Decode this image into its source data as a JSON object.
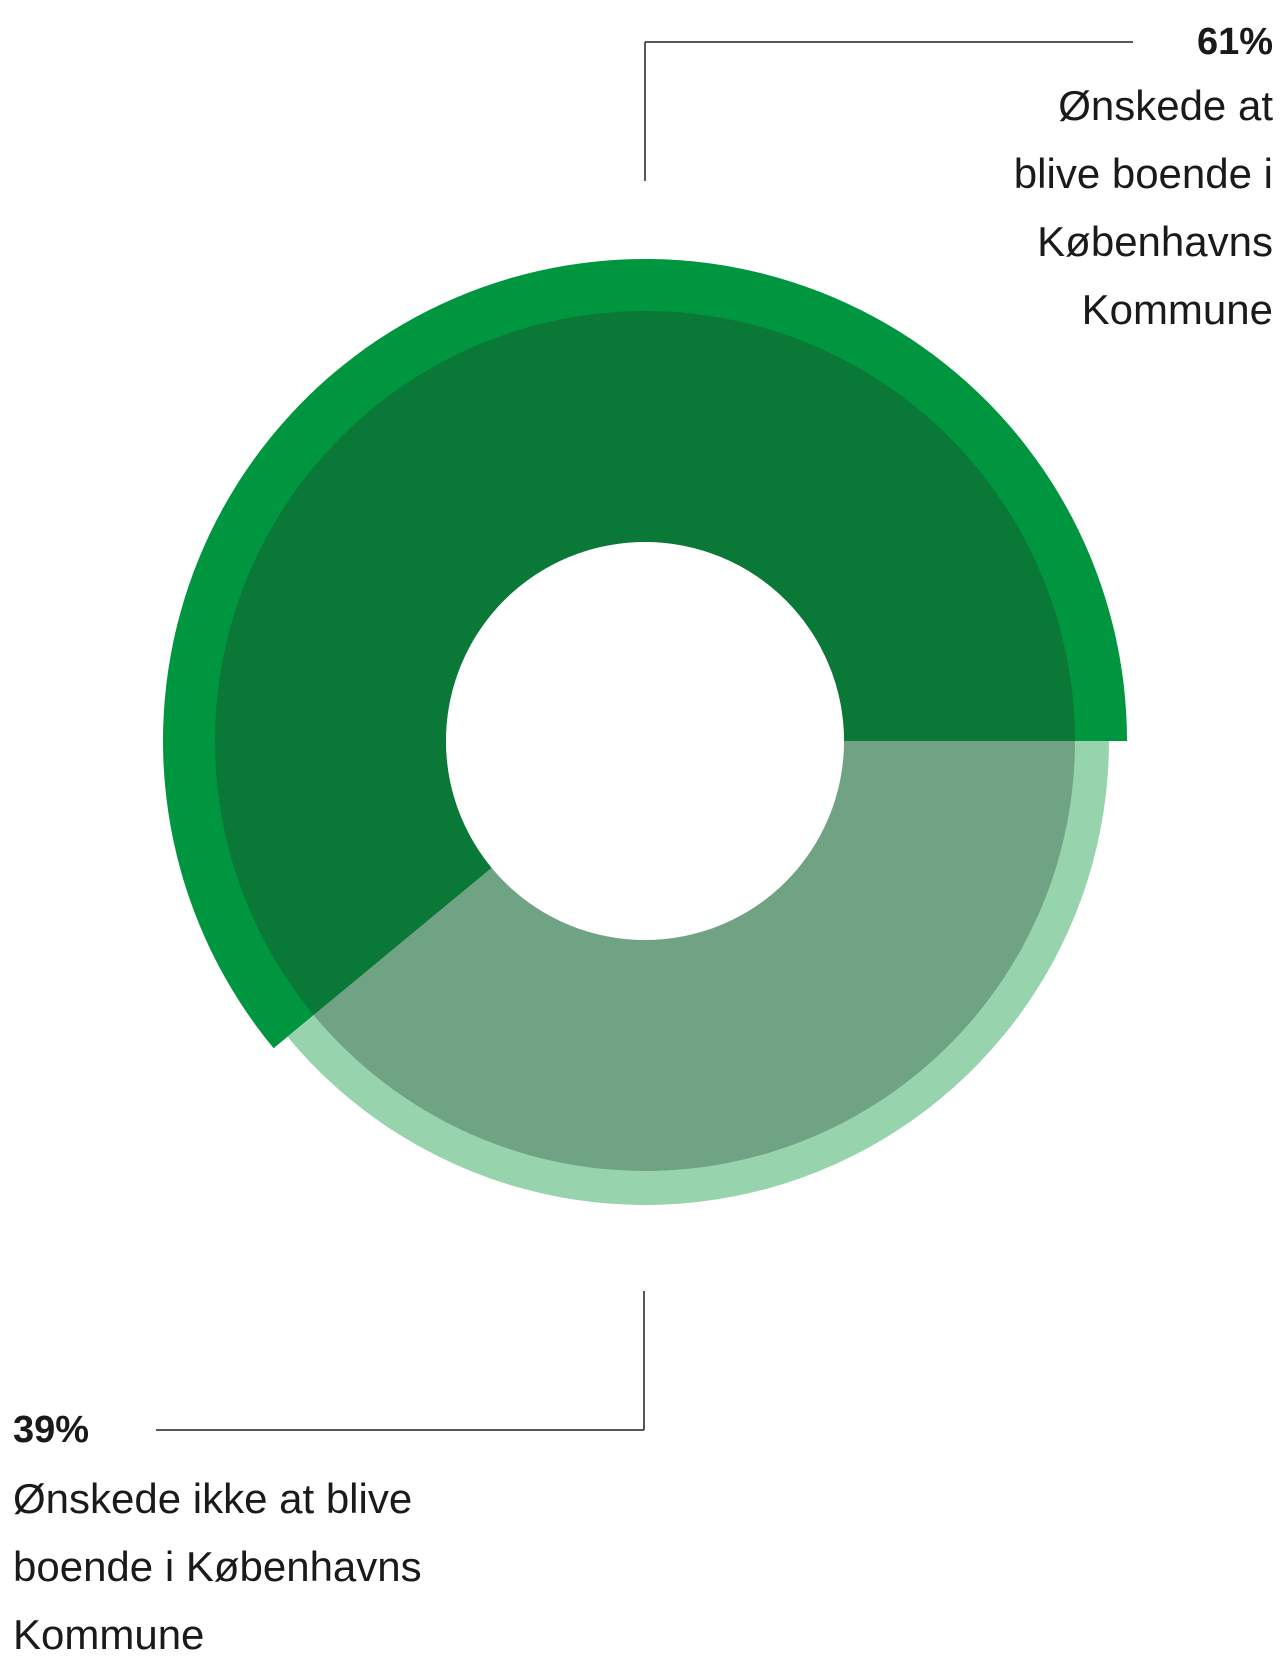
{
  "chart_data": {
    "type": "donut",
    "categories": [
      "Ønskede at blive boende i Københavns Kommune",
      "Ønskede ikke at blive boende i Københavns Kommune"
    ],
    "values": [
      61,
      39
    ],
    "value_labels": [
      "61%",
      "39%"
    ],
    "colors": [
      "#00963f",
      "#97d4ae"
    ]
  }
}
